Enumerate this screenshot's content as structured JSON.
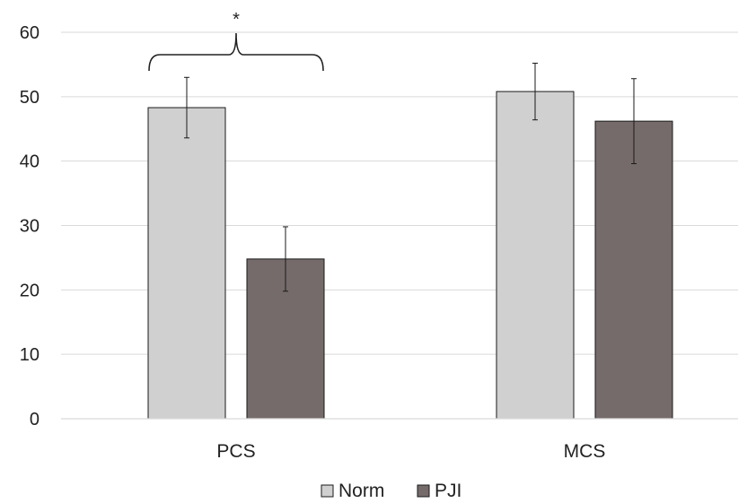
{
  "chart_data": {
    "type": "bar",
    "categories": [
      "PCS",
      "MCS"
    ],
    "series": [
      {
        "name": "Norm",
        "color": "#d0d0d0",
        "values": [
          48.3,
          50.8
        ],
        "error": [
          4.7,
          4.4
        ]
      },
      {
        "name": "PJI",
        "color": "#756b6b",
        "values": [
          24.8,
          46.2
        ],
        "error": [
          5.0,
          6.6
        ]
      }
    ],
    "ylim": [
      0,
      60
    ],
    "yticks": [
      "0",
      "10",
      "20",
      "30",
      "40",
      "50",
      "60"
    ],
    "grid": true,
    "legend": "bottom",
    "annotations": [
      {
        "text": "*",
        "type": "significance-bracket",
        "category": "PCS"
      }
    ]
  }
}
